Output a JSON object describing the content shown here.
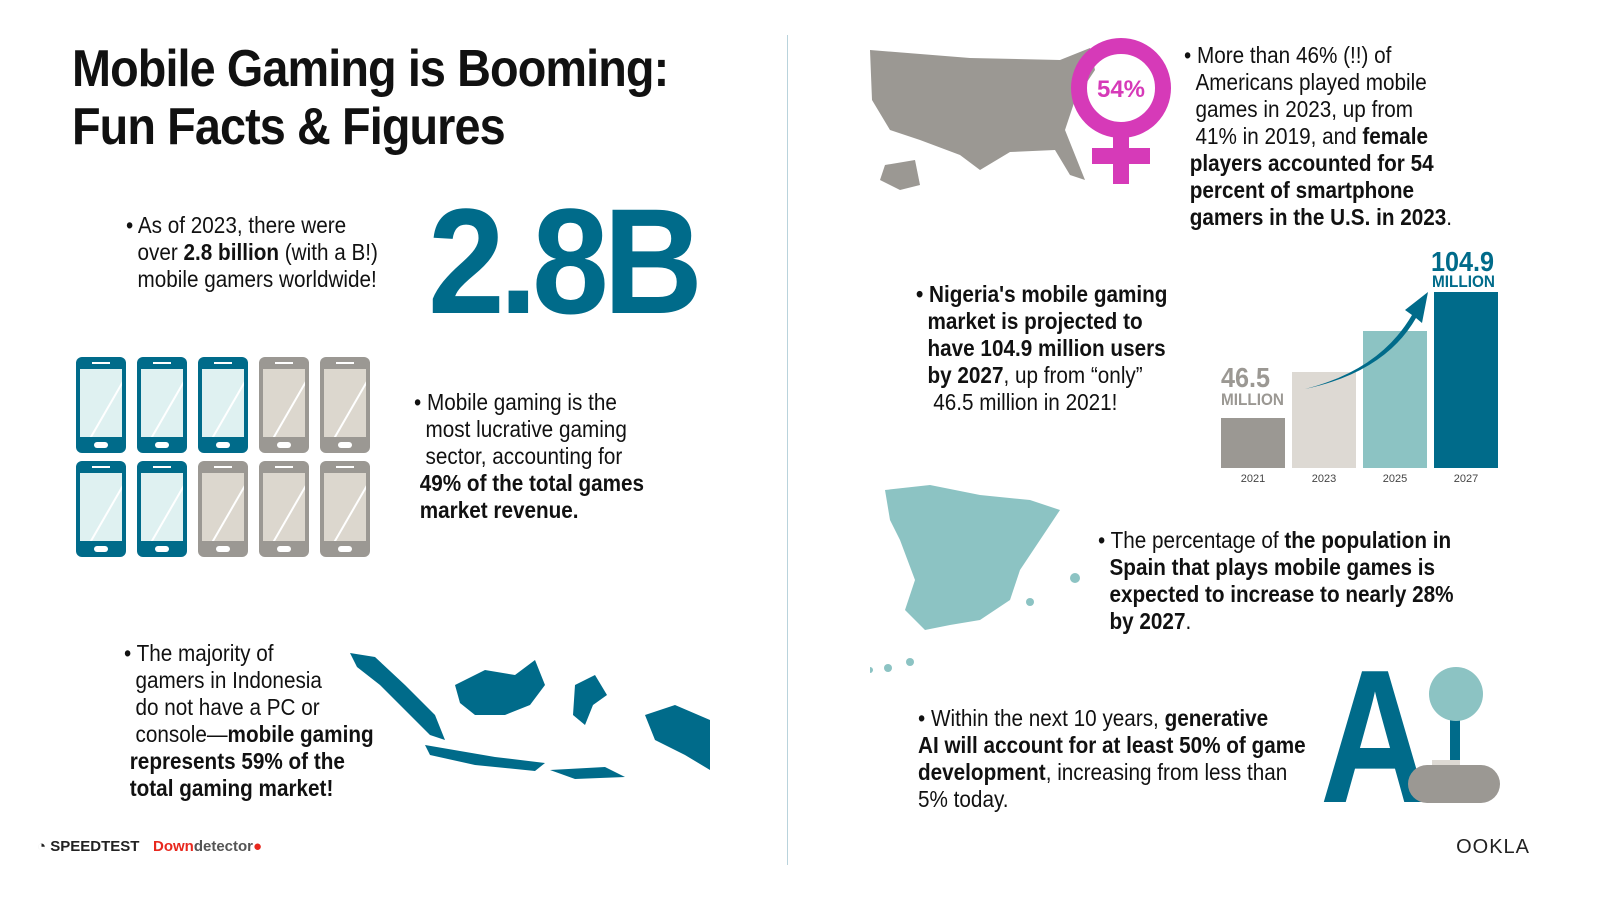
{
  "title_line1": "Mobile Gaming is Booming:",
  "title_line2": "Fun Facts & Figures",
  "big_stat": "2.8B",
  "fact_gamers": {
    "p1": "• As of 2023, there were",
    "p2": "over ",
    "b1": "2.8 billion",
    "p3": " (with a B!)",
    "p4": "mobile gamers worldwide!"
  },
  "fact_revenue": {
    "p1": "• Mobile gaming is the",
    "p2": "most lucrative gaming",
    "p3": "sector, accounting for",
    "b1": "49% of the total games",
    "b2": "market revenue."
  },
  "fact_indonesia": {
    "p1": "• The majority of",
    "p2": "gamers in Indonesia",
    "p3": "do not have a PC or",
    "p4": "console—",
    "b1": "mobile gaming",
    "b2": "represents 59% of the",
    "b3": "total gaming market!"
  },
  "fact_us": {
    "p1": "• More than 46% (!!) of",
    "p2": "Americans played mobile",
    "p3": "games in 2023, up from",
    "p4": "41% in 2019, and ",
    "b1": "female",
    "b2": "players accounted for 54",
    "b3": "percent of smartphone",
    "b4": "gamers in the U.S. in 2023",
    "p5": "."
  },
  "female_badge": "54%",
  "fact_nigeria": {
    "b1": "• Nigeria's mobile gaming",
    "b2": "market is projected to",
    "b3": "have 104.9 million users",
    "b4": "by 2027",
    "p1": ", up from “only”",
    "p2": "46.5 million in 2021!"
  },
  "fact_spain": {
    "p1": "• The percentage of ",
    "b1": "the population in",
    "b2": "Spain that plays mobile games is",
    "b3": "expected to increase to nearly 28%",
    "b4": "by 2027",
    "p2": "."
  },
  "fact_ai": {
    "p1": "• Within the next 10 years, ",
    "b1": "generative",
    "b2": "AI will account for at least 50% of game",
    "b3": "development",
    "p2": ", increasing from less than",
    "p3": "5% today."
  },
  "ai_glyph": "A",
  "phones": {
    "teal_count": 5,
    "total": 10
  },
  "logos": {
    "speedtest": "SPEEDTEST",
    "downdetector_a": "Down",
    "downdetector_b": "detector",
    "ookla": "OOKLA"
  },
  "colors": {
    "teal": "#006b8a",
    "light_teal": "#8cc3c3",
    "gray": "#9b9893",
    "beige": "#ddd9d3",
    "magenta": "#d63ab8",
    "red": "#e8281e"
  },
  "chart_data": {
    "type": "bar",
    "categories": [
      "2021",
      "2023",
      "2025",
      "2027"
    ],
    "values": [
      46.5,
      68,
      87,
      104.9
    ],
    "unit_label": "MILLION",
    "data_labels": {
      "first": "46.5",
      "last": "104.9"
    },
    "bar_colors": [
      "#9b9893",
      "#ddd9d3",
      "#8cc3c3",
      "#006b8a"
    ],
    "grid": false
  }
}
